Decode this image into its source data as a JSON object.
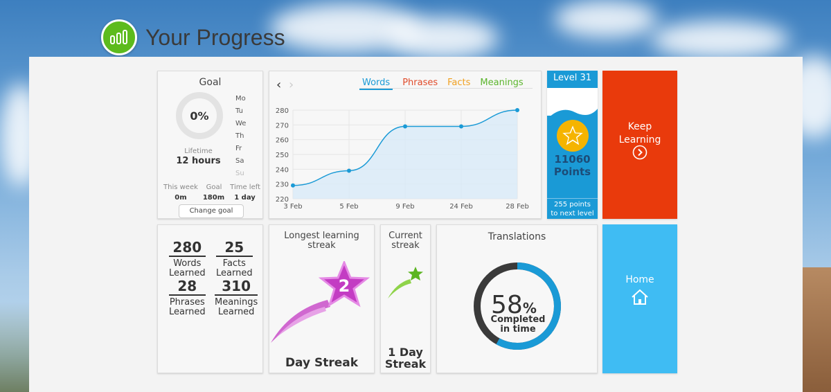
{
  "header": {
    "title": "Your Progress",
    "logo_icon": "chart-bubble-icon"
  },
  "goal": {
    "title": "Goal",
    "percent": "0%",
    "days": [
      "Mo",
      "Tu",
      "We",
      "Th",
      "Fr",
      "Sa",
      "Su"
    ],
    "lifetime_label": "Lifetime",
    "lifetime_value": "12 hours",
    "stats_labels": [
      "This week",
      "Goal",
      "Time left"
    ],
    "stats_values": [
      "0m",
      "180m",
      "1 day"
    ],
    "change_goal_label": "Change goal"
  },
  "chart_card": {
    "tabs": [
      "Words",
      "Phrases",
      "Facts",
      "Meanings"
    ],
    "active_tab": "Words",
    "prev_icon": "chevron-left-icon",
    "next_icon": "chevron-right-icon"
  },
  "chart_data": {
    "type": "area",
    "categories": [
      "3 Feb",
      "5 Feb",
      "9 Feb",
      "24 Feb",
      "28 Feb"
    ],
    "series": [
      {
        "values": [
          229,
          239,
          269,
          269,
          280
        ]
      }
    ],
    "ylim": [
      220,
      280
    ],
    "yticks": [
      220,
      230,
      240,
      250,
      260,
      270,
      280
    ],
    "grid": true,
    "color": "#1a9ad6"
  },
  "level": {
    "label": "Level 31",
    "points": "11060",
    "points_label": "Points",
    "next_line1": "255 points",
    "next_line2": "to next level"
  },
  "keep_learning": {
    "line1": "Keep",
    "line2": "Learning"
  },
  "counts": [
    {
      "value": "280",
      "line1": "Words",
      "line2": "Learned"
    },
    {
      "value": "25",
      "line1": "Facts",
      "line2": "Learned"
    },
    {
      "value": "28",
      "line1": "Phrases",
      "line2": "Learned"
    },
    {
      "value": "310",
      "line1": "Meanings",
      "line2": "Learned"
    }
  ],
  "longest_streak": {
    "line1": "Longest learning",
    "line2": "streak",
    "value": "2",
    "bottom": "Day Streak"
  },
  "current_streak": {
    "line1": "Current",
    "line2": "streak",
    "bottom1": "1 Day",
    "bottom2": "Streak"
  },
  "translations": {
    "title": "Translations",
    "percent_number": "58",
    "percent_sign": "%",
    "percent_value": 58,
    "line1": "Completed",
    "line2": "in time"
  },
  "home": {
    "label": "Home"
  }
}
